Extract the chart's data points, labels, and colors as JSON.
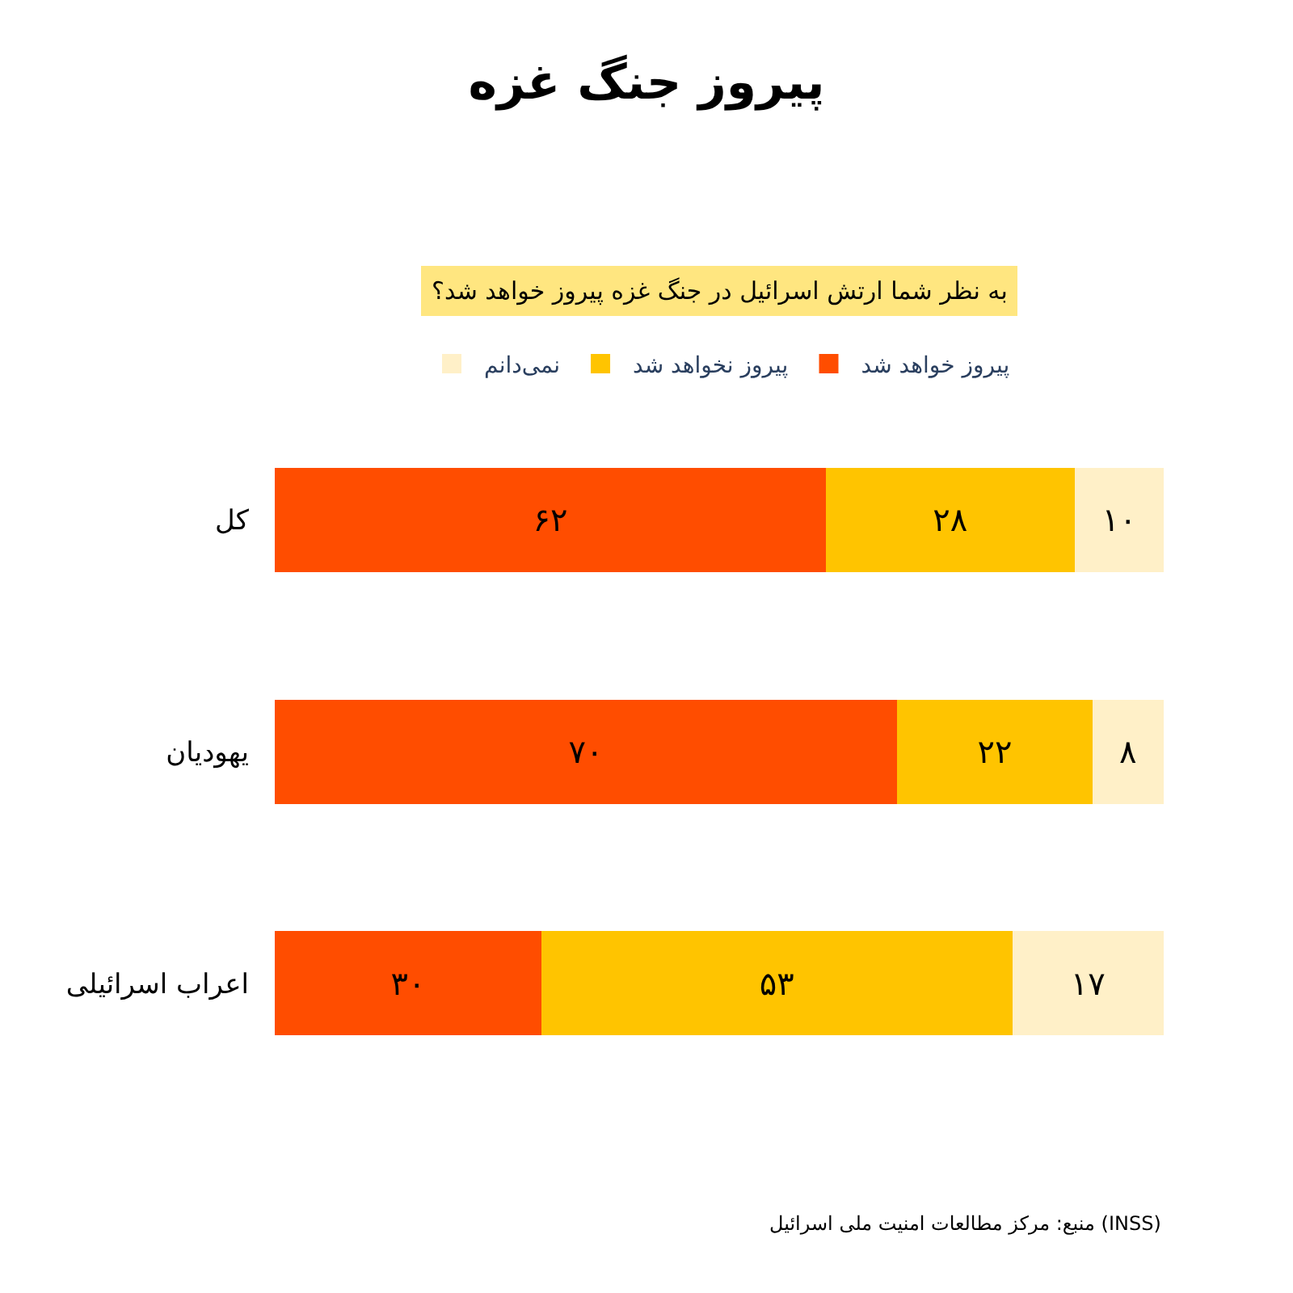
{
  "chart_data": {
    "type": "bar",
    "orientation": "horizontal",
    "stacked": true,
    "title": "پیروز جنگ غزه",
    "subtitle": "به نظر شما ارتش اسرائیل در جنگ غزه پیروز خواهد شد؟",
    "categories": [
      "کل",
      "یهودیان",
      "اعراب اسرائیلی"
    ],
    "series": [
      {
        "name": "پیروز خواهد شد",
        "color": "#ff4d00",
        "values": [
          62,
          70,
          30
        ],
        "value_labels": [
          "۶۲",
          "۷۰",
          "۳۰"
        ]
      },
      {
        "name": "پیروز نخواهد شد",
        "color": "#ffc400",
        "values": [
          28,
          22,
          53
        ],
        "value_labels": [
          "۲۸",
          "۲۲",
          "۵۳"
        ]
      },
      {
        "name": "نمی‌دانم",
        "color": "#fff0c8",
        "values": [
          10,
          8,
          17
        ],
        "value_labels": [
          "۱۰",
          "۸",
          "۱۷"
        ]
      }
    ],
    "xlim": [
      0,
      100
    ],
    "tick_labels": "y",
    "legend": "top",
    "annotations": [
      "منبع: مرکز مطالعات امنیت ملی اسرائیل (INSS)"
    ]
  }
}
